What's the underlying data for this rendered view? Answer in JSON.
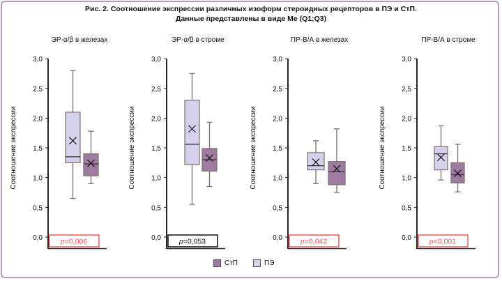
{
  "title_line1": "Рис. 2. Соотношение экспрессии различных изоформ стероидных рецепторов в ПЭ и СтП.",
  "title_line2": "Данные представлены в виде Me (Q1;Q3)",
  "legend": [
    {
      "label": "СтП",
      "color": "#9e7ba0"
    },
    {
      "label": "ПЭ",
      "color": "#d5d0ec"
    }
  ],
  "colors": {
    "pe_fill": "#d5d0ec",
    "stp_fill": "#9e7ba0",
    "whisker": "#7a7068",
    "p_sig": "#e85a5a",
    "p_ns": "#111111"
  },
  "chart_data": [
    {
      "type": "box",
      "title": "ЭР-α/β в железах",
      "ylabel": "Соотношение экспрессии",
      "ylim": [
        0,
        3
      ],
      "yticks": [
        "0,0",
        "0,5",
        "1,0",
        "1,5",
        "2,0",
        "2,5",
        "3,0"
      ],
      "series": [
        {
          "name": "ПЭ",
          "min": 0.65,
          "q1": 1.25,
          "median": 1.35,
          "q3": 2.1,
          "max": 2.8,
          "mean": 1.62
        },
        {
          "name": "СтП",
          "min": 0.9,
          "q1": 1.03,
          "median": 1.23,
          "q3": 1.4,
          "max": 1.78,
          "mean": 1.24
        }
      ],
      "p_prefix": "p",
      "p_text": "=0,006",
      "significant": true
    },
    {
      "type": "box",
      "title": "ЭР-α/β в строме",
      "ylabel": "Соотношение экспрессии",
      "ylim": [
        0,
        3
      ],
      "yticks": [
        "0,0",
        "0,5",
        "1,0",
        "1,5",
        "2,0",
        "2,5",
        "3,0"
      ],
      "series": [
        {
          "name": "ПЭ",
          "min": 0.55,
          "q1": 1.22,
          "median": 1.56,
          "q3": 2.3,
          "max": 2.75,
          "mean": 1.82
        },
        {
          "name": "СтП",
          "min": 0.85,
          "q1": 1.11,
          "median": 1.3,
          "q3": 1.49,
          "max": 1.93,
          "mean": 1.33
        }
      ],
      "p_prefix": "p",
      "p_text": "=0,053",
      "significant": false
    },
    {
      "type": "box",
      "title": "ПР-В/А в железах",
      "ylabel": "Соотношение экспрессии",
      "ylim": [
        0,
        3
      ],
      "yticks": [
        "0,0",
        "0,5",
        "1,0",
        "1,5",
        "2,0",
        "2,5",
        "3,0"
      ],
      "series": [
        {
          "name": "ПЭ",
          "min": 0.9,
          "q1": 1.13,
          "median": 1.2,
          "q3": 1.42,
          "max": 1.62,
          "mean": 1.26
        },
        {
          "name": "СтП",
          "min": 0.75,
          "q1": 0.88,
          "median": 1.1,
          "q3": 1.27,
          "max": 1.82,
          "mean": 1.15
        }
      ],
      "p_prefix": "p",
      "p_text": "=0,042",
      "significant": true
    },
    {
      "type": "box",
      "title": "ПР-В/А в строме",
      "ylabel": "Соотношение экспрессии",
      "ylim": [
        0,
        3
      ],
      "yticks": [
        "0,0",
        "0,5",
        "1,0",
        "1,5",
        "2,0",
        "2,5",
        "3,0"
      ],
      "series": [
        {
          "name": "ПЭ",
          "min": 0.96,
          "q1": 1.13,
          "median": 1.4,
          "q3": 1.52,
          "max": 1.87,
          "mean": 1.34
        },
        {
          "name": "СтП",
          "min": 0.76,
          "q1": 0.91,
          "median": 1.05,
          "q3": 1.25,
          "max": 1.56,
          "mean": 1.07
        }
      ],
      "p_prefix": "p",
      "p_text": "<0,001",
      "significant": true
    }
  ]
}
